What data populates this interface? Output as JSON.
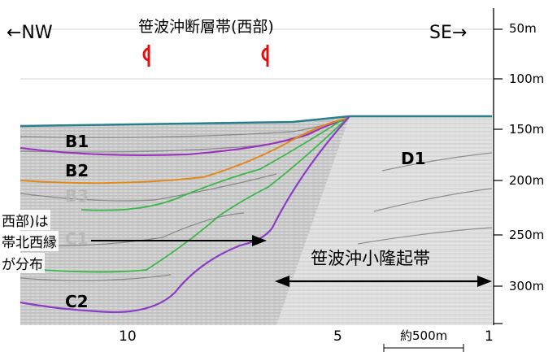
{
  "title": "笹波沖断層帯(西部)",
  "direction_left": "←NW",
  "direction_right": "SE→",
  "depth_labels": [
    "50m",
    "100m",
    "150m",
    "200m",
    "250m",
    "300m"
  ],
  "distance_labels": [
    "10",
    "5",
    "1"
  ],
  "scale_label": "約500m",
  "units": {
    "b1": "B1",
    "b2": "B2",
    "b3": "B3",
    "c1": "C1",
    "c2": "C2",
    "d1": "D1"
  },
  "callout_lines": [
    "西部)は",
    "帯北西縁",
    "が分布"
  ],
  "uplift_zone_label": "笹波沖小隆起帯",
  "colors": {
    "sea_floor": "#2a7f8f",
    "b1_boundary": "#9b30c0",
    "b2_boundary": "#e08a1e",
    "green_horizon": "#3cb64a",
    "c2_boundary": "#8a3dc6",
    "fault_marker": "#e01010",
    "sediment": "#c9c9c9"
  }
}
